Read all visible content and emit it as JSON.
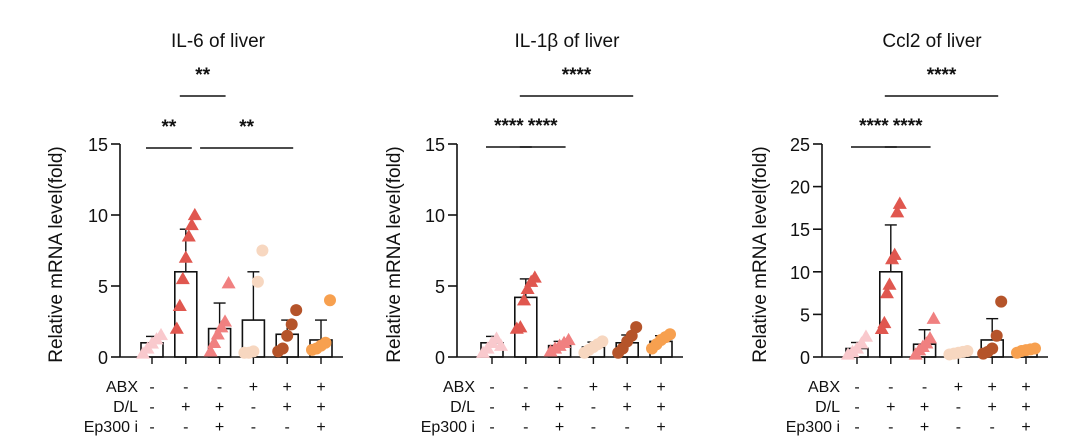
{
  "chart_data": [
    {
      "type": "bar",
      "title": "IL-6 of liver",
      "ylabel": "Relative mRNA level(fold)",
      "ylim": [
        0,
        15
      ],
      "yticks": [
        0,
        5,
        10,
        15
      ],
      "groups": [
        {
          "mean": 1.0,
          "sd": 0.45,
          "marker": "triangle",
          "color": "#f9c9cd",
          "points": [
            0.25,
            0.6,
            0.95,
            1.25,
            1.55
          ]
        },
        {
          "mean": 6.0,
          "sd": 3.0,
          "marker": "triangle",
          "color": "#e0574f",
          "points": [
            2.0,
            3.6,
            5.5,
            7.0,
            8.5,
            9.3,
            10.0
          ]
        },
        {
          "mean": 2.0,
          "sd": 1.8,
          "marker": "triangle",
          "color": "#f08080",
          "points": [
            0.4,
            1.0,
            1.6,
            2.1,
            2.5,
            5.2
          ]
        },
        {
          "mean": 2.6,
          "sd": 3.4,
          "marker": "circle",
          "color": "#f7d7c0",
          "points": [
            0.3,
            0.3,
            0.4,
            5.3,
            7.5
          ]
        },
        {
          "mean": 1.6,
          "sd": 1.0,
          "marker": "circle",
          "color": "#b5542a",
          "points": [
            0.4,
            0.6,
            1.5,
            2.3,
            3.3
          ]
        },
        {
          "mean": 1.2,
          "sd": 1.4,
          "marker": "circle",
          "color": "#f7a04f",
          "points": [
            0.5,
            0.6,
            0.8,
            1.0,
            4.0
          ]
        }
      ],
      "significance": [
        {
          "label": "**",
          "from": 0,
          "to": 1,
          "row": 0
        },
        {
          "label": "**",
          "from": 1,
          "to": 2,
          "row": 2
        },
        {
          "label": "**",
          "from": 1.6,
          "to": 4,
          "row": 0
        }
      ]
    },
    {
      "type": "bar",
      "title": "IL-1β of liver",
      "ylabel": "Relative mRNA level(fold)",
      "ylim": [
        0,
        15
      ],
      "yticks": [
        0,
        5,
        10,
        15
      ],
      "groups": [
        {
          "mean": 1.0,
          "sd": 0.45,
          "marker": "triangle",
          "color": "#f9c9cd",
          "points": [
            0.3,
            0.6,
            1.0,
            1.3,
            0.8
          ]
        },
        {
          "mean": 4.2,
          "sd": 1.3,
          "marker": "triangle",
          "color": "#e0574f",
          "points": [
            2.0,
            2.1,
            4.0,
            4.8,
            5.3,
            5.6
          ]
        },
        {
          "mean": 0.8,
          "sd": 0.3,
          "marker": "triangle",
          "color": "#f08080",
          "points": [
            0.4,
            0.6,
            0.8,
            1.0,
            1.2
          ]
        },
        {
          "mean": 0.7,
          "sd": 0.35,
          "marker": "circle",
          "color": "#f7d7c0",
          "points": [
            0.3,
            0.5,
            0.7,
            0.9,
            1.1
          ]
        },
        {
          "mean": 1.0,
          "sd": 0.55,
          "marker": "circle",
          "color": "#b5542a",
          "points": [
            0.3,
            0.6,
            1.1,
            1.5,
            2.1
          ]
        },
        {
          "mean": 1.1,
          "sd": 0.4,
          "marker": "circle",
          "color": "#f7a04f",
          "points": [
            0.6,
            0.9,
            1.2,
            1.4,
            1.6
          ]
        }
      ],
      "significance": [
        {
          "label": "****",
          "from": 0,
          "to": 1,
          "row": 0
        },
        {
          "label": "****",
          "from": 1,
          "to": 2,
          "row": 0
        },
        {
          "label": "****",
          "from": 1,
          "to": 4,
          "row": 2
        }
      ]
    },
    {
      "type": "bar",
      "title": "Ccl2 of liver",
      "ylabel": "Relative mRNA level(fold)",
      "ylim": [
        0,
        25
      ],
      "yticks": [
        0,
        5,
        10,
        15,
        20,
        25
      ],
      "groups": [
        {
          "mean": 1.0,
          "sd": 0.7,
          "marker": "triangle",
          "color": "#f9c9cd",
          "points": [
            0.3,
            0.6,
            1.0,
            1.6,
            2.4
          ]
        },
        {
          "mean": 10.0,
          "sd": 5.5,
          "marker": "triangle",
          "color": "#e0574f",
          "points": [
            3.3,
            4.0,
            7.5,
            8.5,
            11.5,
            12.0,
            17.0,
            18.0
          ]
        },
        {
          "mean": 1.5,
          "sd": 1.7,
          "marker": "triangle",
          "color": "#f08080",
          "points": [
            0.3,
            0.8,
            1.2,
            1.6,
            2.2,
            4.5
          ]
        },
        {
          "mean": 0.5,
          "sd": 0.2,
          "marker": "circle",
          "color": "#f7d7c0",
          "points": [
            0.3,
            0.4,
            0.5,
            0.6,
            0.7
          ]
        },
        {
          "mean": 2.0,
          "sd": 2.5,
          "marker": "circle",
          "color": "#b5542a",
          "points": [
            0.4,
            0.6,
            1.0,
            2.5,
            6.5
          ]
        },
        {
          "mean": 0.8,
          "sd": 0.3,
          "marker": "circle",
          "color": "#f7a04f",
          "points": [
            0.5,
            0.7,
            0.8,
            0.9,
            1.0
          ]
        }
      ],
      "significance": [
        {
          "label": "****",
          "from": 0,
          "to": 1,
          "row": 0
        },
        {
          "label": "****",
          "from": 1,
          "to": 2,
          "row": 0
        },
        {
          "label": "****",
          "from": 1,
          "to": 4,
          "row": 2
        }
      ]
    }
  ],
  "conditions": {
    "rows": [
      {
        "label": "ABX",
        "values": [
          "-",
          "-",
          "-",
          "+",
          "+",
          "+"
        ]
      },
      {
        "label": "D/L",
        "values": [
          "-",
          "+",
          "+",
          "-",
          "+",
          "+"
        ]
      },
      {
        "label": "Ep300 i",
        "values": [
          "-",
          "-",
          "+",
          "-",
          "-",
          "+"
        ]
      }
    ]
  }
}
